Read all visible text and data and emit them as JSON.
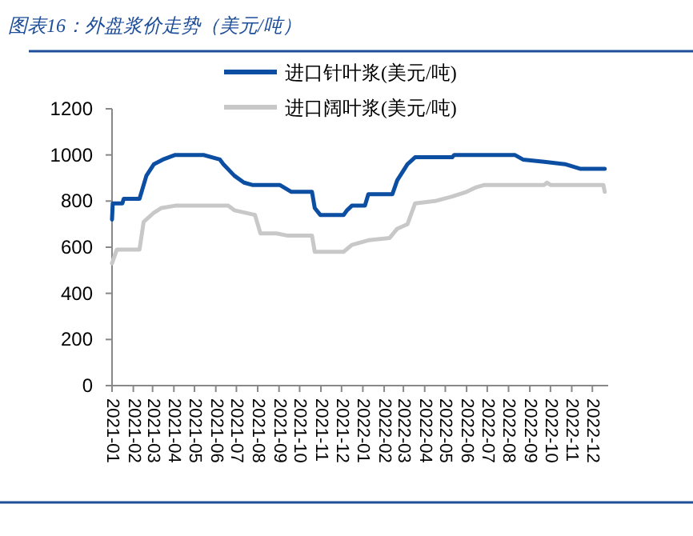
{
  "chart_data": {
    "type": "line",
    "title": "图表16：外盘浆价走势（美元/吨）",
    "x": [
      "2021-01-01",
      "2021-01-02",
      "2021-01-16",
      "2021-01-18",
      "2021-02-10",
      "2021-02-20",
      "2021-03-03",
      "2021-03-16",
      "2021-04-03",
      "2021-05-14",
      "2021-06-07",
      "2021-06-12",
      "2021-06-28",
      "2021-07-12",
      "2021-07-24",
      "2021-09-02",
      "2021-09-19",
      "2021-10-19",
      "2021-10-23",
      "2021-10-31",
      "2021-12-04",
      "2021-12-09",
      "2021-12-16",
      "2022-01-04",
      "2022-01-09",
      "2022-02-13",
      "2022-02-20",
      "2022-03-07",
      "2022-03-18",
      "2022-05-11",
      "2022-05-14",
      "2022-08-10",
      "2022-08-22",
      "2022-09-22",
      "2022-10-22",
      "2022-11-13",
      "2022-12-19"
    ],
    "series": [
      {
        "name": "进口针叶浆(美元/吨)",
        "color": "#0b4ea2",
        "values": [
          720,
          790,
          790,
          810,
          810,
          910,
          960,
          980,
          1000,
          1000,
          980,
          960,
          910,
          880,
          870,
          870,
          840,
          840,
          770,
          740,
          740,
          760,
          780,
          780,
          830,
          830,
          890,
          960,
          990,
          990,
          1000,
          1000,
          980,
          970,
          960,
          940,
          940
        ]
      },
      {
        "name": "进口阔叶浆(美元/吨)",
        "color": "#c8c8c8",
        "x": [
          "2021-01-01",
          "2021-01-08",
          "2021-02-10",
          "2021-02-16",
          "2021-03-03",
          "2021-03-14",
          "2021-04-03",
          "2021-06-19",
          "2021-06-28",
          "2021-07-28",
          "2021-08-05",
          "2021-08-28",
          "2021-09-14",
          "2021-10-19",
          "2021-10-23",
          "2021-12-04",
          "2021-12-16",
          "2022-01-09",
          "2022-02-09",
          "2022-02-20",
          "2022-03-07",
          "2022-03-18",
          "2022-04-16",
          "2022-05-11",
          "2022-06-01",
          "2022-06-15",
          "2022-06-27",
          "2022-09-22",
          "2022-09-26",
          "2022-10-01",
          "2022-12-17",
          "2022-12-19"
        ],
        "values": [
          530,
          590,
          590,
          710,
          750,
          770,
          780,
          780,
          760,
          740,
          660,
          660,
          650,
          650,
          580,
          580,
          610,
          630,
          640,
          680,
          700,
          790,
          800,
          820,
          840,
          860,
          870,
          870,
          880,
          870,
          870,
          840
        ]
      }
    ],
    "xlim": [
      "2021-01-01",
      "2022-12-24"
    ],
    "xticks": [
      {
        "value": "2021-01",
        "label": "2021-01"
      },
      {
        "value": "2021-02",
        "label": "2021-02"
      },
      {
        "value": "2021-03",
        "label": "2021-03"
      },
      {
        "value": "2021-04",
        "label": "2021-04"
      },
      {
        "value": "2021-05",
        "label": "2021-05"
      },
      {
        "value": "2021-06",
        "label": "2021-06"
      },
      {
        "value": "2021-07",
        "label": "2021-07"
      },
      {
        "value": "2021-08",
        "label": "2021-08"
      },
      {
        "value": "2021-09",
        "label": "2021-09"
      },
      {
        "value": "2021-10",
        "label": "2021-10"
      },
      {
        "value": "2021-11",
        "label": "2021-11"
      },
      {
        "value": "2021-12",
        "label": "2021-12"
      },
      {
        "value": "2022-01",
        "label": "2022-01"
      },
      {
        "value": "2022-02",
        "label": "2022-02"
      },
      {
        "value": "2022-03",
        "label": "2022-03"
      },
      {
        "value": "2022-04",
        "label": "2022-04"
      },
      {
        "value": "2022-05",
        "label": "2022-05"
      },
      {
        "value": "2022-06",
        "label": "2022-06"
      },
      {
        "value": "2022-07",
        "label": "2022-07"
      },
      {
        "value": "2022-08",
        "label": "2022-08"
      },
      {
        "value": "2022-09",
        "label": "2022-09"
      },
      {
        "value": "2022-10",
        "label": "2022-10"
      },
      {
        "value": "2022-11",
        "label": "2022-11"
      },
      {
        "value": "2022-12",
        "label": "2022-12"
      }
    ],
    "ylim": [
      0,
      1200
    ],
    "yticks": [
      0,
      200,
      400,
      600,
      800,
      1000,
      1200
    ],
    "grid": false,
    "legend": "top",
    "marker": "none",
    "line_style": "solid"
  }
}
